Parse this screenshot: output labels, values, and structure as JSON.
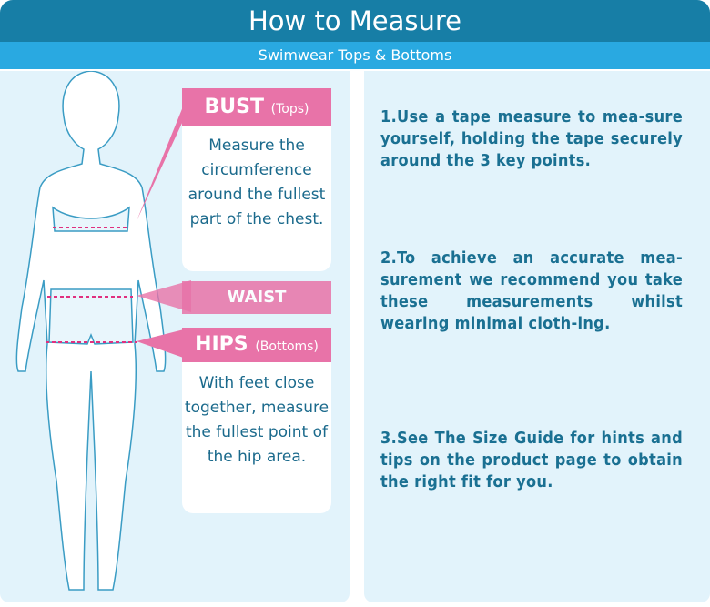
{
  "header": {
    "title": "How to Measure",
    "subtitle": "Swimwear Tops & Bottoms"
  },
  "bust": {
    "label": "BUST",
    "sub": "(Tops)",
    "text": "Measure the circumference around the fullest part of the chest."
  },
  "waist": {
    "label": "WAIST"
  },
  "hips": {
    "label": "HIPS",
    "sub": "(Bottoms)",
    "text": "With feet close together, measure the fullest point of the hip area."
  },
  "steps": [
    "1.Use a tape measure to mea-sure yourself, holding the tape securely around the 3 key points.",
    "2.To achieve an accurate mea-surement we recommend you take these measurements whilst wearing minimal cloth-ing.",
    "3.See The Size Guide for hints and tips on the product page to obtain the right fit for you."
  ],
  "colors": {
    "header": "#177ea6",
    "subheader": "#29a9e1",
    "panel": "#e2f3fb",
    "accent": "#e873a8",
    "text": "#1a7092"
  }
}
